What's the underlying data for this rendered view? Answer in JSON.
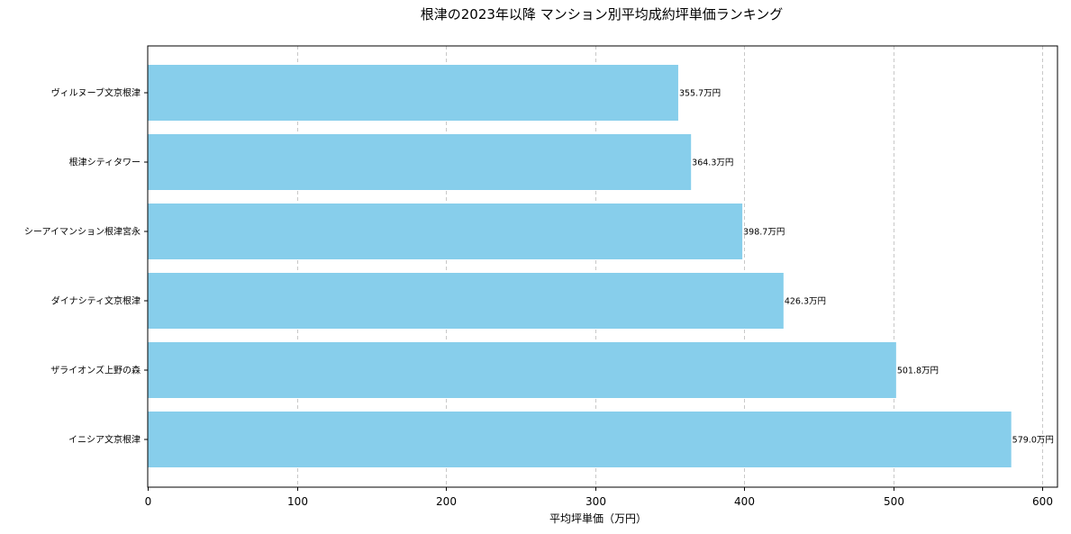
{
  "chart_data": {
    "type": "bar",
    "orientation": "horizontal",
    "title": "根津の2023年以降 マンション別平均成約坪単価ランキング",
    "xlabel": "平均坪単価（万円）",
    "ylabel": "",
    "categories": [
      "ヴィルヌーブ文京根津",
      "根津シティタワー",
      "シーアイマンション根津宮永",
      "ダイナシティ文京根津",
      "ザライオンズ上野の森",
      "イニシア文京根津"
    ],
    "values": [
      355.7,
      364.3,
      398.7,
      426.3,
      501.8,
      579.0
    ],
    "value_labels": [
      "355.7万円",
      "364.3万円",
      "398.7万円",
      "426.3万円",
      "501.8万円",
      "579.0万円"
    ],
    "xlim": [
      0,
      610
    ],
    "xticks": [
      0,
      100,
      200,
      300,
      400,
      500,
      600
    ],
    "xtick_labels": [
      "0",
      "100",
      "200",
      "300",
      "400",
      "500",
      "600"
    ],
    "grid": "vertical dashed",
    "bar_color": "#87CEEB",
    "grid_color": "#c8c8c8"
  }
}
